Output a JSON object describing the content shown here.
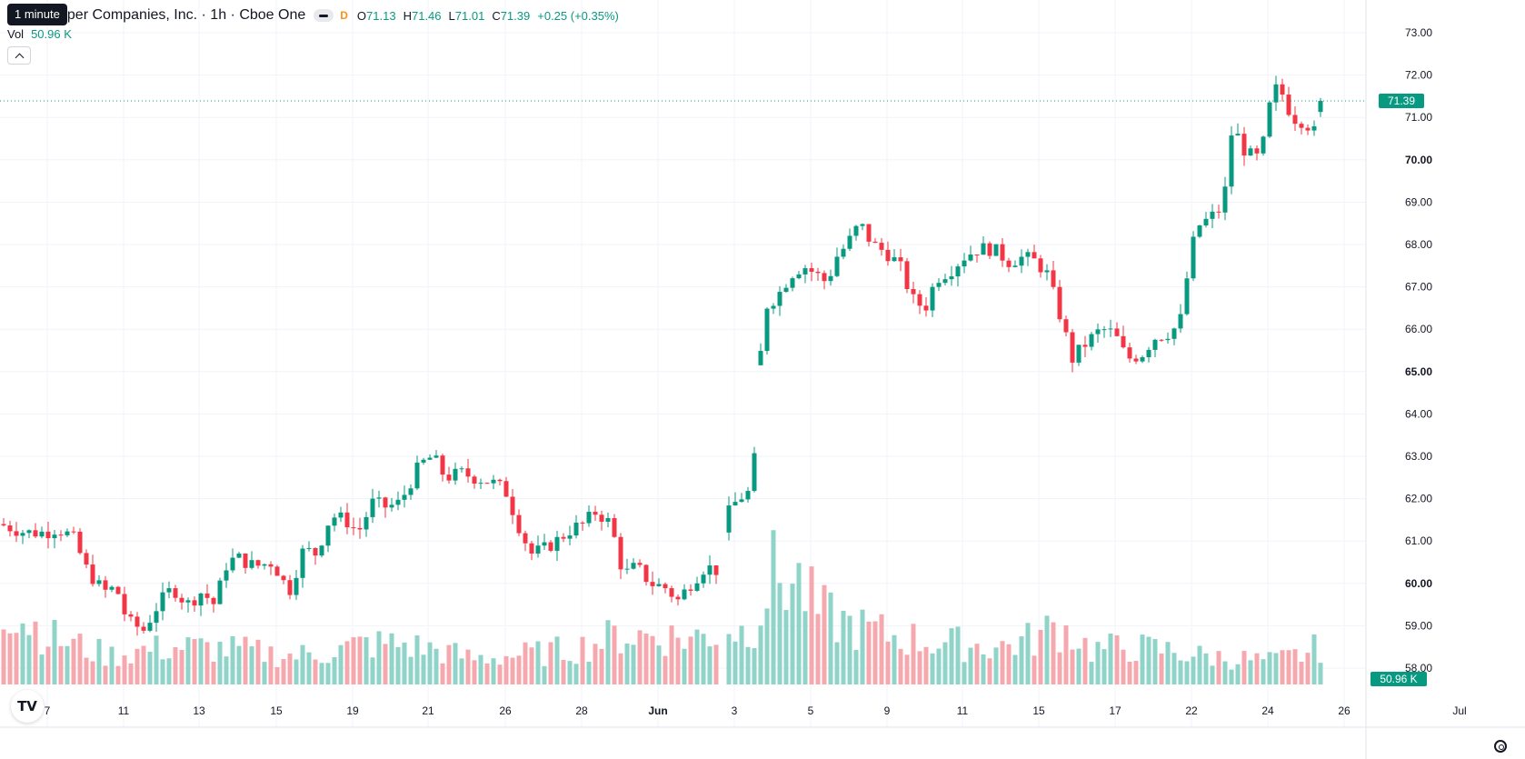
{
  "tooltip": "1 minute",
  "header": {
    "symbol": "oper Companies, Inc. · 1h · Cboe One",
    "badge": "D",
    "ohlc": {
      "o_label": "O",
      "o": "71.13",
      "h_label": "H",
      "h": "71.46",
      "l_label": "L",
      "l": "71.01",
      "c_label": "C",
      "c": "71.39",
      "change": "+0.25 (+0.35%)"
    }
  },
  "volume_legend": {
    "label": "Vol",
    "value": "50.96 K"
  },
  "icons": {
    "collapse": "chevron-up-icon",
    "logo": "tradingview-logo-icon",
    "settings": "gear-icon"
  },
  "logo_text": "TV",
  "colors": {
    "up": "#089981",
    "down": "#f23645",
    "up_volume": "#8fd3c9",
    "down_volume": "#f5a8ad",
    "grid": "#f0f3fa",
    "axis_text": "#131722"
  },
  "chart_data": {
    "type": "candlestick",
    "price_axis": {
      "ticks": [
        "73.00",
        "72.00",
        "71.00",
        "70.00",
        "69.00",
        "68.00",
        "67.00",
        "66.00",
        "65.00",
        "64.00",
        "63.00",
        "62.00",
        "61.00",
        "60.00",
        "59.00",
        "58.00"
      ],
      "bold_ticks": [
        "70.00",
        "65.00",
        "60.00"
      ],
      "range": [
        57.8,
        73.3
      ],
      "last_price_label": "71.39",
      "volume_label": "50.96 K"
    },
    "time_axis": {
      "ticks": [
        "7",
        "11",
        "13",
        "15",
        "19",
        "21",
        "26",
        "28",
        "Jun",
        "3",
        "5",
        "9",
        "11",
        "15",
        "17",
        "22",
        "24",
        "26",
        "Jul"
      ],
      "bold_ticks": [
        "Jun"
      ]
    },
    "last_price": 71.39,
    "last_volume": 50.96,
    "volume_max": 60,
    "candle_anchors": [
      [
        0,
        61.4
      ],
      [
        14,
        61.3
      ],
      [
        28,
        61.2
      ],
      [
        50,
        61.2
      ],
      [
        62,
        61.3
      ],
      [
        80,
        61.1
      ],
      [
        96,
        60.3
      ],
      [
        114,
        59.8
      ],
      [
        128,
        59.9
      ],
      [
        140,
        59.1
      ],
      [
        158,
        58.9
      ],
      [
        174,
        59.5
      ],
      [
        190,
        59.9
      ],
      [
        206,
        59.5
      ],
      [
        222,
        59.8
      ],
      [
        236,
        59.5
      ],
      [
        250,
        60.5
      ],
      [
        262,
        60.6
      ],
      [
        280,
        60.4
      ],
      [
        300,
        60.5
      ],
      [
        318,
        59.8
      ],
      [
        334,
        60.8
      ],
      [
        348,
        60.7
      ],
      [
        364,
        61.6
      ],
      [
        380,
        61.5
      ],
      [
        394,
        61.2
      ],
      [
        410,
        61.9
      ],
      [
        426,
        61.8
      ],
      [
        440,
        61.9
      ],
      [
        452,
        62.4
      ],
      [
        462,
        62.8
      ],
      [
        476,
        63.0
      ],
      [
        490,
        62.5
      ],
      [
        508,
        62.6
      ],
      [
        522,
        62.5
      ],
      [
        540,
        62.4
      ],
      [
        556,
        62.2
      ],
      [
        570,
        61.4
      ],
      [
        584,
        60.7
      ],
      [
        598,
        60.8
      ],
      [
        612,
        61.0
      ],
      [
        630,
        61.3
      ],
      [
        642,
        61.4
      ],
      [
        656,
        61.7
      ],
      [
        672,
        61.4
      ],
      [
        686,
        60.2
      ],
      [
        700,
        60.4
      ],
      [
        716,
        60.0
      ],
      [
        732,
        59.9
      ],
      [
        746,
        59.6
      ],
      [
        760,
        60.0
      ],
      [
        776,
        60.4
      ],
      [
        790,
        60.3
      ],
      [
        800,
        61.6
      ],
      [
        812,
        62.0
      ],
      [
        828,
        62.2
      ],
      [
        840,
        66.5
      ],
      [
        856,
        66.8
      ],
      [
        870,
        67.3
      ],
      [
        884,
        67.5
      ],
      [
        898,
        67.3
      ],
      [
        910,
        67.1
      ],
      [
        920,
        67.7
      ],
      [
        932,
        68.0
      ],
      [
        946,
        68.5
      ],
      [
        960,
        68.0
      ],
      [
        976,
        67.8
      ],
      [
        990,
        67.5
      ],
      [
        1004,
        66.7
      ],
      [
        1018,
        66.5
      ],
      [
        1030,
        67.2
      ],
      [
        1046,
        67.4
      ],
      [
        1060,
        67.7
      ],
      [
        1076,
        67.9
      ],
      [
        1092,
        67.9
      ],
      [
        1110,
        67.6
      ],
      [
        1126,
        67.7
      ],
      [
        1140,
        67.6
      ],
      [
        1152,
        67.3
      ],
      [
        1164,
        66.5
      ],
      [
        1180,
        65.3
      ],
      [
        1196,
        65.7
      ],
      [
        1212,
        66.0
      ],
      [
        1226,
        65.9
      ],
      [
        1240,
        65.3
      ],
      [
        1256,
        65.4
      ],
      [
        1270,
        65.8
      ],
      [
        1284,
        65.9
      ],
      [
        1298,
        66.1
      ],
      [
        1306,
        67.2
      ],
      [
        1316,
        68.4
      ],
      [
        1330,
        68.6
      ],
      [
        1346,
        68.9
      ],
      [
        1356,
        70.8
      ],
      [
        1370,
        70.2
      ],
      [
        1382,
        70.0
      ],
      [
        1392,
        70.5
      ],
      [
        1400,
        71.7
      ],
      [
        1410,
        71.6
      ],
      [
        1422,
        71.0
      ],
      [
        1436,
        70.9
      ],
      [
        1452,
        70.5
      ],
      [
        1466,
        70.6
      ],
      [
        1480,
        71.0
      ],
      [
        1490,
        71.3
      ]
    ],
    "volume_anchors": [
      [
        0,
        30
      ],
      [
        30,
        22
      ],
      [
        60,
        16
      ],
      [
        90,
        13
      ],
      [
        120,
        10
      ],
      [
        160,
        12
      ],
      [
        200,
        13
      ],
      [
        260,
        12
      ],
      [
        320,
        10
      ],
      [
        360,
        11
      ],
      [
        400,
        14
      ],
      [
        440,
        14
      ],
      [
        480,
        12
      ],
      [
        520,
        9
      ],
      [
        560,
        10
      ],
      [
        600,
        11
      ],
      [
        640,
        13
      ],
      [
        680,
        17
      ],
      [
        720,
        17
      ],
      [
        760,
        16
      ],
      [
        790,
        18
      ],
      [
        800,
        20
      ],
      [
        820,
        18
      ],
      [
        830,
        22
      ],
      [
        850,
        38
      ],
      [
        880,
        35
      ],
      [
        900,
        25
      ],
      [
        940,
        20
      ],
      [
        980,
        17
      ],
      [
        1020,
        15
      ],
      [
        1060,
        14
      ],
      [
        1100,
        13
      ],
      [
        1140,
        16
      ],
      [
        1160,
        20
      ],
      [
        1180,
        18
      ],
      [
        1200,
        12
      ],
      [
        1240,
        13
      ],
      [
        1280,
        12
      ],
      [
        1320,
        10
      ],
      [
        1360,
        9
      ],
      [
        1400,
        8
      ],
      [
        1440,
        11
      ],
      [
        1490,
        20
      ]
    ]
  }
}
